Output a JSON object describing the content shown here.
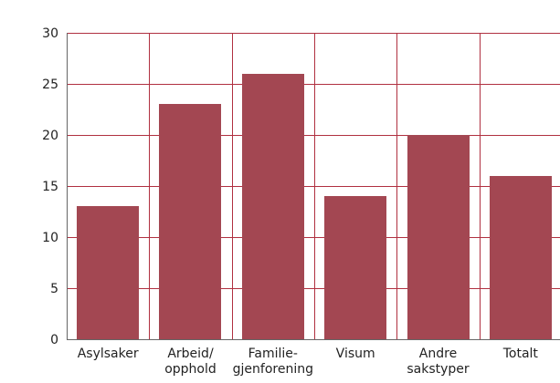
{
  "chart_data": {
    "type": "bar",
    "title": "",
    "xlabel": "",
    "ylabel": "",
    "categories": [
      [
        "Asylsaker"
      ],
      [
        "Arbeid/",
        "opphold"
      ],
      [
        "Familie-",
        "gjenforening"
      ],
      [
        "Visum"
      ],
      [
        "Andre",
        "sakstyper"
      ],
      [
        "Totalt"
      ]
    ],
    "values": [
      13,
      23,
      26,
      14,
      20,
      16
    ],
    "ylim": [
      0,
      30
    ],
    "yticks": [
      0,
      5,
      10,
      15,
      20,
      25,
      30
    ],
    "grid": true,
    "colors": {
      "bar": "#a34752",
      "grid": "#b03040",
      "axis": "#666666"
    }
  }
}
